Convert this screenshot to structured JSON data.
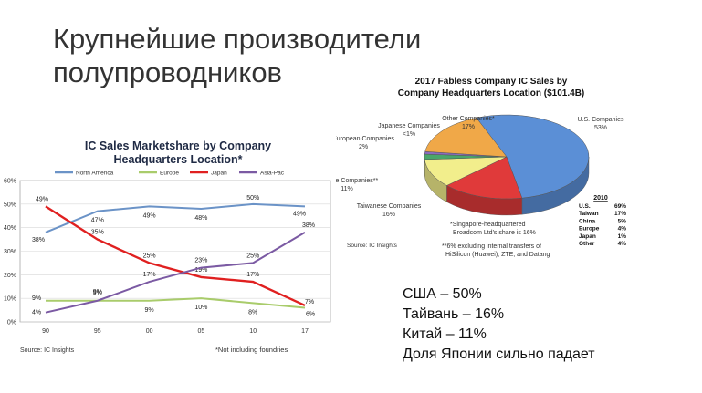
{
  "slide": {
    "title_line1": "Крупнейшие производители",
    "title_line2": "полупроводников",
    "bullets": [
      "США – 50%",
      "Тайвань – 16%",
      "Китай – 11%",
      "Доля Японии сильно падает"
    ]
  },
  "chart_data": [
    {
      "type": "line",
      "title_line1": "IC Sales Marketshare by Company",
      "title_line2": "Headquarters Location*",
      "categories": [
        "90",
        "95",
        "00",
        "05",
        "10",
        "17"
      ],
      "ylim": [
        0,
        60
      ],
      "yticks": [
        "0%",
        "10%",
        "20%",
        "30%",
        "40%",
        "50%",
        "60%"
      ],
      "grid": true,
      "legend_position": "top",
      "series": [
        {
          "name": "North America",
          "color": "#6b93c7",
          "values": [
            38,
            47,
            49,
            48,
            50,
            49
          ],
          "labels": [
            "38%",
            "47%",
            "49%",
            "48%",
            "50%",
            "49%"
          ]
        },
        {
          "name": "Europe",
          "color": "#a9cc6b",
          "values": [
            9,
            9,
            9,
            10,
            8,
            6
          ],
          "labels": [
            "9%",
            "9%",
            "9%",
            "10%",
            "8%",
            "6%"
          ]
        },
        {
          "name": "Japan",
          "color": "#e02020",
          "values": [
            49,
            35,
            25,
            19,
            17,
            7
          ],
          "labels": [
            "49%",
            "35%",
            "25%",
            "19%",
            "17%",
            "7%"
          ]
        },
        {
          "name": "Asia-Pac",
          "color": "#7b5aa3",
          "values": [
            4,
            9,
            17,
            23,
            25,
            38
          ],
          "labels": [
            "4%",
            "9%",
            "17%",
            "23%",
            "25%",
            "38%"
          ]
        }
      ],
      "source": "Source: IC Insights",
      "footnote": "*Not including foundries"
    },
    {
      "type": "pie",
      "title_line1": "2017 Fabless Company IC Sales by",
      "title_line2": "Company Headquarters Location ($101.4B)",
      "slices": [
        {
          "name": "U.S. Companies",
          "value": 53,
          "label": "53%",
          "color": "#5b8fd6"
        },
        {
          "name": "Taiwanese Companies",
          "value": 16,
          "label": "16%",
          "color": "#e03a3a"
        },
        {
          "name": "Chinese Companies**",
          "value": 11,
          "label": "11%",
          "color": "#f2ee8c"
        },
        {
          "name": "European Companies",
          "value": 2,
          "label": "2%",
          "color": "#4aa66a"
        },
        {
          "name": "Japanese Companies",
          "value": 1,
          "label": "<1%",
          "color": "#8a6bbf"
        },
        {
          "name": "Other Companies*",
          "value": 17,
          "label": "17%",
          "color": "#f0a848"
        }
      ],
      "table_title": "2010",
      "table": [
        {
          "region": "U.S.",
          "value": "69%"
        },
        {
          "region": "Taiwan",
          "value": "17%"
        },
        {
          "region": "China",
          "value": "5%"
        },
        {
          "region": "Europe",
          "value": "4%"
        },
        {
          "region": "Japan",
          "value": "1%"
        },
        {
          "region": "Other",
          "value": "4%"
        }
      ],
      "note1_line1": "*Singapore-headquartered",
      "note1_line2": "Broadcom Ltd's share is 16%",
      "note2_line1": "**6% excluding internal transfers of",
      "note2_line2": "HiSilicon (Huawei), ZTE, and Datang",
      "source": "Source: IC Insights"
    }
  ]
}
